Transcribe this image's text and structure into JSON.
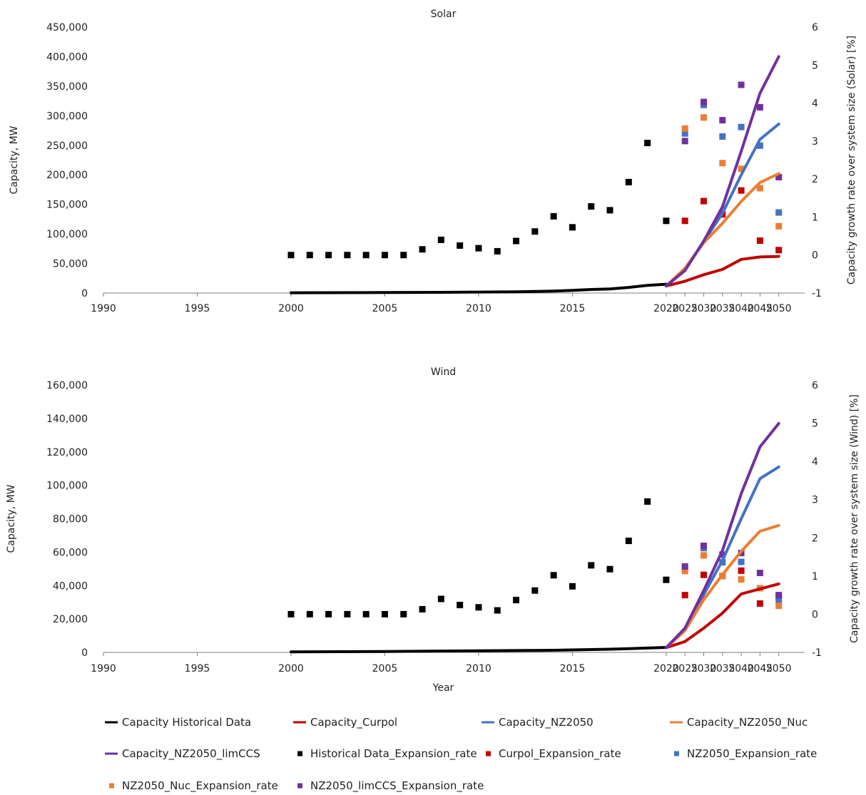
{
  "chart_data": [
    {
      "type": "line",
      "title": "Solar",
      "xlabel": "",
      "ylabel": "Capacity, MW",
      "y2label": "Capacity growth rate over system size (Solar) [%]",
      "x_ticks": [
        "1990",
        "1995",
        "2000",
        "2005",
        "2010",
        "2015",
        "2020",
        "2025",
        "2030",
        "2035",
        "2040",
        "2045",
        "2050"
      ],
      "ylim": [
        0,
        450000
      ],
      "y_ticks": [
        "0",
        "50,000",
        "100,000",
        "150,000",
        "200,000",
        "250,000",
        "300,000",
        "350,000",
        "400,000",
        "450,000"
      ],
      "y2lim": [
        -1,
        6
      ],
      "y2_ticks": [
        "-1",
        "0",
        "1",
        "2",
        "3",
        "4",
        "5",
        "6"
      ],
      "lines": [
        {
          "name": "Capacity Historical Data",
          "color": "#000000",
          "x": [
            2000,
            2005,
            2008,
            2010,
            2012,
            2014,
            2015,
            2016,
            2017,
            2018,
            2019,
            2020
          ],
          "y": [
            500,
            800,
            1200,
            1700,
            2200,
            3400,
            4500,
            6000,
            7000,
            9500,
            13000,
            15000
          ]
        },
        {
          "name": "Capacity_Curpol",
          "color": "#C00000",
          "x": [
            2020,
            2025,
            2030,
            2035,
            2040,
            2045,
            2050
          ],
          "y": [
            12000,
            20000,
            31000,
            40000,
            57000,
            61000,
            62000
          ]
        },
        {
          "name": "Capacity_NZ2050",
          "color": "#4472C4",
          "x": [
            2020,
            2025,
            2030,
            2035,
            2040,
            2045,
            2050
          ],
          "y": [
            12000,
            40000,
            87000,
            135000,
            200000,
            260000,
            286000
          ]
        },
        {
          "name": "Capacity_NZ2050_Nuc",
          "color": "#ED7D31",
          "x": [
            2020,
            2025,
            2030,
            2035,
            2040,
            2045,
            2050
          ],
          "y": [
            12000,
            42000,
            85000,
            118000,
            155000,
            187000,
            202000
          ]
        },
        {
          "name": "Capacity_NZ2050_limCCS",
          "color": "#7030A0",
          "x": [
            2020,
            2025,
            2030,
            2035,
            2040,
            2045,
            2050
          ],
          "y": [
            12000,
            38000,
            88000,
            146000,
            240000,
            338000,
            400000
          ]
        }
      ],
      "points": [
        {
          "name": "Historical Data_Expansion_rate",
          "color": "#000000",
          "x": [
            2000,
            2001,
            2002,
            2003,
            2004,
            2005,
            2006,
            2007,
            2008,
            2009,
            2010,
            2011,
            2012,
            2013,
            2014,
            2015,
            2016,
            2017,
            2018,
            2019,
            2020
          ],
          "y": [
            0,
            0,
            0,
            0,
            0,
            0,
            0,
            0.15,
            0.4,
            0.25,
            0.18,
            0.1,
            0.37,
            0.62,
            1.02,
            0.73,
            1.28,
            1.18,
            1.92,
            2.95,
            0.9
          ]
        },
        {
          "name": "Curpol_Expansion_rate",
          "color": "#C00000",
          "x": [
            2025,
            2030,
            2035,
            2040,
            2045,
            2050
          ],
          "y": [
            0.9,
            1.42,
            1.07,
            1.7,
            0.38,
            0.13
          ]
        },
        {
          "name": "NZ2050_Expansion_rate",
          "color": "#4472C4",
          "x": [
            2025,
            2030,
            2035,
            2040,
            2045,
            2050
          ],
          "y": [
            3.2,
            3.95,
            3.12,
            3.37,
            2.88,
            1.12
          ]
        },
        {
          "name": "NZ2050_Nuc_Expansion_rate",
          "color": "#ED7D31",
          "x": [
            2025,
            2030,
            2035,
            2040,
            2045,
            2050
          ],
          "y": [
            3.33,
            3.62,
            2.42,
            2.27,
            1.76,
            0.76
          ]
        },
        {
          "name": "NZ2050_limCCS_Expansion_rate",
          "color": "#7030A0",
          "x": [
            2025,
            2030,
            2035,
            2040,
            2045,
            2050
          ],
          "y": [
            3.0,
            4.03,
            3.55,
            4.48,
            3.89,
            2.05
          ]
        }
      ]
    },
    {
      "type": "line",
      "title": "Wind",
      "xlabel": "Year",
      "ylabel": "Capacity, MW",
      "y2label": "Capacity growth rate over system size (Wind) [%]",
      "x_ticks": [
        "1990",
        "1995",
        "2000",
        "2005",
        "2010",
        "2015",
        "2020",
        "2025",
        "2030",
        "2035",
        "2040",
        "2045",
        "2050"
      ],
      "ylim": [
        0,
        160000
      ],
      "y_ticks": [
        "0",
        "20,000",
        "40,000",
        "60,000",
        "80,000",
        "100,000",
        "120,000",
        "140,000",
        "160,000"
      ],
      "y2lim": [
        -1,
        6
      ],
      "y2_ticks": [
        "-1",
        "0",
        "1",
        "2",
        "3",
        "4",
        "5",
        "6"
      ],
      "lines": [
        {
          "name": "Capacity Historical Data",
          "color": "#000000",
          "x": [
            2000,
            2005,
            2008,
            2010,
            2012,
            2014,
            2015,
            2016,
            2017,
            2018,
            2019,
            2020
          ],
          "y": [
            300,
            500,
            800,
            1000,
            1100,
            1300,
            1500,
            1700,
            1900,
            2200,
            2600,
            3000
          ]
        },
        {
          "name": "Capacity_Curpol",
          "color": "#C00000",
          "x": [
            2020,
            2025,
            2030,
            2035,
            2040,
            2045,
            2050
          ],
          "y": [
            2800,
            6500,
            14500,
            23500,
            35000,
            38000,
            41000
          ]
        },
        {
          "name": "Capacity_NZ2050",
          "color": "#4472C4",
          "x": [
            2020,
            2025,
            2030,
            2035,
            2040,
            2045,
            2050
          ],
          "y": [
            2800,
            13500,
            34500,
            55000,
            80000,
            104000,
            111000
          ]
        },
        {
          "name": "Capacity_NZ2050_Nuc",
          "color": "#ED7D31",
          "x": [
            2020,
            2025,
            2030,
            2035,
            2040,
            2045,
            2050
          ],
          "y": [
            2800,
            13000,
            31500,
            46500,
            60500,
            72500,
            76000
          ]
        },
        {
          "name": "Capacity_NZ2050_limCCS",
          "color": "#7030A0",
          "x": [
            2020,
            2025,
            2030,
            2035,
            2040,
            2045,
            2050
          ],
          "y": [
            2800,
            14500,
            37000,
            61000,
            95000,
            123000,
            137000
          ]
        }
      ],
      "points": [
        {
          "name": "Historical Data_Expansion_rate",
          "color": "#000000",
          "x": [
            2000,
            2001,
            2002,
            2003,
            2004,
            2005,
            2006,
            2007,
            2008,
            2009,
            2010,
            2011,
            2012,
            2013,
            2014,
            2015,
            2016,
            2017,
            2018,
            2019,
            2020
          ],
          "y": [
            0,
            0,
            0,
            0,
            0,
            0,
            0,
            0.13,
            0.4,
            0.24,
            0.18,
            0.1,
            0.37,
            0.62,
            1.02,
            0.73,
            1.28,
            1.18,
            1.92,
            2.95,
            0.9
          ]
        },
        {
          "name": "Curpol_Expansion_rate",
          "color": "#C00000",
          "x": [
            2025,
            2030,
            2035,
            2040,
            2045,
            2050
          ],
          "y": [
            0.5,
            1.03,
            1.0,
            1.14,
            0.28,
            0.48
          ]
        },
        {
          "name": "NZ2050_Expansion_rate",
          "color": "#4472C4",
          "x": [
            2025,
            2030,
            2035,
            2040,
            2045,
            2050
          ],
          "y": [
            1.2,
            1.73,
            1.36,
            1.37,
            0.68,
            0.34
          ]
        },
        {
          "name": "NZ2050_Nuc_Expansion_rate",
          "color": "#ED7D31",
          "x": [
            2025,
            2030,
            2035,
            2040,
            2045,
            2050
          ],
          "y": [
            1.13,
            1.54,
            1.0,
            0.91,
            0.68,
            0.22
          ]
        },
        {
          "name": "NZ2050_limCCS_Expansion_rate",
          "color": "#7030A0",
          "x": [
            2025,
            2030,
            2035,
            2040,
            2045,
            2050
          ],
          "y": [
            1.25,
            1.79,
            1.56,
            1.6,
            1.08,
            0.5
          ]
        }
      ]
    }
  ],
  "legend": [
    {
      "label": "Capacity Historical Data",
      "color": "#000000",
      "kind": "line"
    },
    {
      "label": "Capacity_Curpol",
      "color": "#C00000",
      "kind": "line"
    },
    {
      "label": "Capacity_NZ2050",
      "color": "#4472C4",
      "kind": "line"
    },
    {
      "label": "Capacity_NZ2050_Nuc",
      "color": "#ED7D31",
      "kind": "line"
    },
    {
      "label": "Capacity_NZ2050_limCCS",
      "color": "#7030A0",
      "kind": "line"
    },
    {
      "label": "Historical Data_Expansion_rate",
      "color": "#000000",
      "kind": "marker"
    },
    {
      "label": "Curpol_Expansion_rate",
      "color": "#C00000",
      "kind": "marker"
    },
    {
      "label": "NZ2050_Expansion_rate",
      "color": "#4472C4",
      "kind": "marker"
    },
    {
      "label": "NZ2050_Nuc_Expansion_rate",
      "color": "#ED7D31",
      "kind": "marker"
    },
    {
      "label": "NZ2050_limCCS_Expansion_rate",
      "color": "#7030A0",
      "kind": "marker"
    }
  ]
}
